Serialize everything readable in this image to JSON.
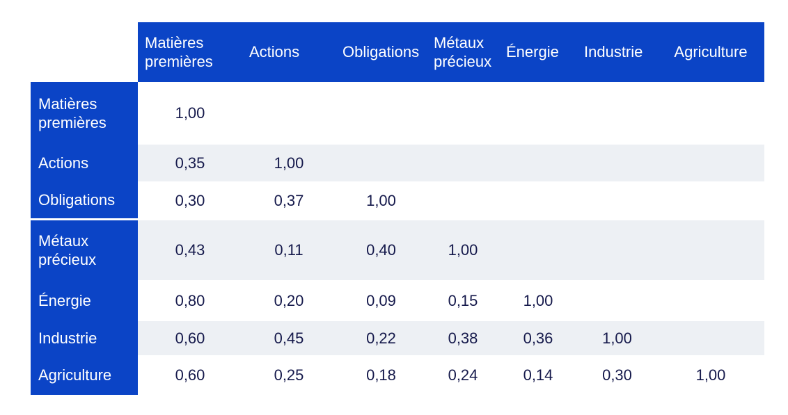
{
  "colors": {
    "header_bg": "#0b44c6",
    "header_text": "#ffffff",
    "row_bg": "#ffffff",
    "row_alt_bg": "#edf0f4",
    "value_text": "#15194b"
  },
  "matrix": {
    "corner_label": "",
    "columns": [
      "Matières premières",
      "Actions",
      "Obligations",
      "Métaux précieux",
      "Énergie",
      "Industrie",
      "Agriculture"
    ],
    "rows": [
      {
        "label": "Matières premières",
        "values": [
          "1,00",
          "",
          "",
          "",
          "",
          "",
          ""
        ]
      },
      {
        "label": "Actions",
        "values": [
          "0,35",
          "1,00",
          "",
          "",
          "",
          "",
          ""
        ]
      },
      {
        "label": "Obligations",
        "values": [
          "0,30",
          "0,37",
          "1,00",
          "",
          "",
          "",
          ""
        ]
      },
      {
        "label": "Métaux précieux",
        "values": [
          "0,43",
          "0,11",
          "0,40",
          "1,00",
          "",
          "",
          ""
        ]
      },
      {
        "label": "Énergie",
        "values": [
          "0,80",
          "0,20",
          "0,09",
          "0,15",
          "1,00",
          "",
          ""
        ]
      },
      {
        "label": "Industrie",
        "values": [
          "0,60",
          "0,45",
          "0,22",
          "0,38",
          "0,36",
          "1,00",
          ""
        ]
      },
      {
        "label": "Agriculture",
        "values": [
          "0,60",
          "0,25",
          "0,18",
          "0,24",
          "0,14",
          "0,30",
          "1,00"
        ]
      }
    ]
  },
  "chart_data": {
    "type": "table",
    "title": "",
    "categories": [
      "Matières premières",
      "Actions",
      "Obligations",
      "Métaux précieux",
      "Énergie",
      "Industrie",
      "Agriculture"
    ],
    "correlation_matrix_lower_triangular": [
      [
        1.0,
        null,
        null,
        null,
        null,
        null,
        null
      ],
      [
        0.35,
        1.0,
        null,
        null,
        null,
        null,
        null
      ],
      [
        0.3,
        0.37,
        1.0,
        null,
        null,
        null,
        null
      ],
      [
        0.43,
        0.11,
        0.4,
        1.0,
        null,
        null,
        null
      ],
      [
        0.8,
        0.2,
        0.09,
        0.15,
        1.0,
        null,
        null
      ],
      [
        0.6,
        0.45,
        0.22,
        0.38,
        0.36,
        1.0,
        null
      ],
      [
        0.6,
        0.25,
        0.18,
        0.24,
        0.14,
        0.3,
        1.0
      ]
    ],
    "number_format": "french-decimal-comma, 2 decimals",
    "layout": "header row and header column blue, alternating body row shading, empty cells above diagonal"
  }
}
